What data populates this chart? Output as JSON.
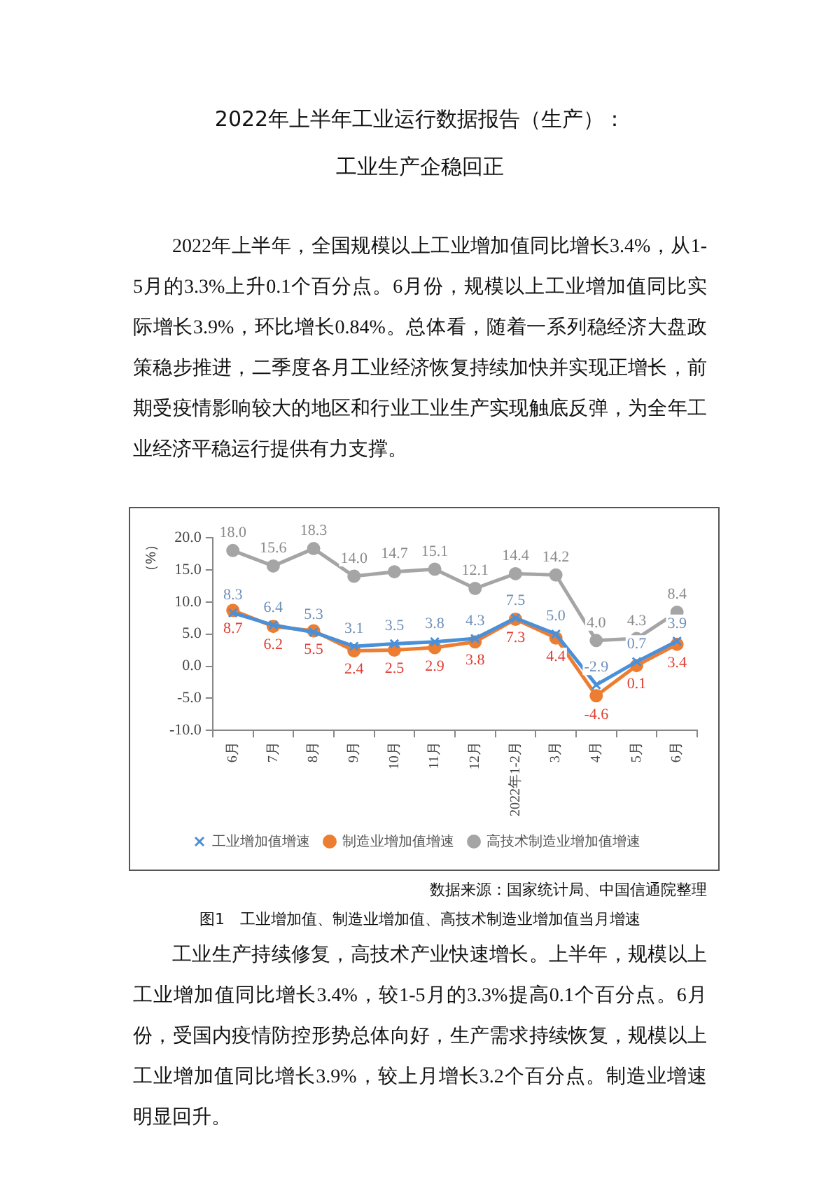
{
  "chart_data": {
    "type": "line",
    "title": "2022年上半年工业运行数据报告（生产）：",
    "subtitle": "工业生产企稳回正",
    "ylabel": "（%）",
    "categories": [
      "6月",
      "7月",
      "8月",
      "9月",
      "10月",
      "11月",
      "12月",
      "2022年1-2月",
      "3月",
      "4月",
      "5月",
      "6月"
    ],
    "series": [
      {
        "name": "工业增加值增速",
        "color": "#4a90d9",
        "marker": "cross",
        "values": [
          8.3,
          6.4,
          5.3,
          3.1,
          3.5,
          3.8,
          4.3,
          7.5,
          5.0,
          -2.9,
          0.7,
          3.9
        ],
        "value_labels": [
          "8.3",
          "6.4",
          "5.3",
          "3.1",
          "3.5",
          "3.8",
          "4.3",
          "7.5",
          "5.0",
          "-2.9",
          "0.7",
          "3.9"
        ]
      },
      {
        "name": "制造业增加值增速",
        "color": "#ed7d31",
        "marker": "circle",
        "values": [
          8.7,
          6.2,
          5.5,
          2.4,
          2.5,
          2.9,
          3.8,
          7.3,
          4.4,
          -4.6,
          0.1,
          3.4
        ],
        "value_labels": [
          "8.7",
          "6.2",
          "5.5",
          "2.4",
          "2.5",
          "2.9",
          "3.8",
          "7.3",
          "4.4",
          "-4.6",
          "0.1",
          "3.4"
        ]
      },
      {
        "name": "高技术制造业增加值增速",
        "color": "#a5a5a5",
        "marker": "circle",
        "values": [
          18.0,
          15.6,
          18.3,
          14.0,
          14.7,
          15.1,
          12.1,
          14.4,
          14.2,
          4.0,
          4.3,
          8.4
        ],
        "value_labels": [
          "18.0",
          "15.6",
          "18.3",
          "14.0",
          "14.7",
          "15.1",
          "12.1",
          "14.4",
          "14.2",
          "4.0",
          "4.3",
          "8.4"
        ]
      }
    ],
    "ylim": [
      -10,
      20
    ],
    "yticks": [
      {
        "value": -10,
        "label": "-10.0"
      },
      {
        "value": -5,
        "label": "-5.0"
      },
      {
        "value": 0,
        "label": "0.0"
      },
      {
        "value": 5,
        "label": "5.0"
      },
      {
        "value": 10,
        "label": "10.0"
      },
      {
        "value": 15,
        "label": "15.0"
      },
      {
        "value": 20,
        "label": "20.0"
      }
    ],
    "grid": false,
    "legend": "bottom",
    "annotations": [
      "2022年上半年，全国规模以上工业增加值同比增长3.4%，从1-5月的3.3%上升0.1个百分点。6月份，规模以上工业增加值同比实际增长3.9%，环比增长0.84%。总体看，随着一系列稳经济大盘政策稳步推进，二季度各月工业经济恢复持续加快并实现正增长，前期受疫情影响较大的地区和行业工业生产实现触底反弹，为全年工业经济平稳运行提供有力支撑。",
      "数据来源：国家统计局、中国信通院整理",
      "图1　工业增加值、制造业增加值、高技术制造业增加值当月增速",
      "工业生产持续修复，高技术产业快速增长。上半年，规模以上工业增加值同比增长3.4%，较1-5月的3.3%提高0.1个百分点。6月份，受国内疫情防控形势总体向好，生产需求持续恢复，规模以上工业增加值同比增长3.9%，较上月增长3.2个百分点。制造业增速明显回升。"
    ]
  }
}
